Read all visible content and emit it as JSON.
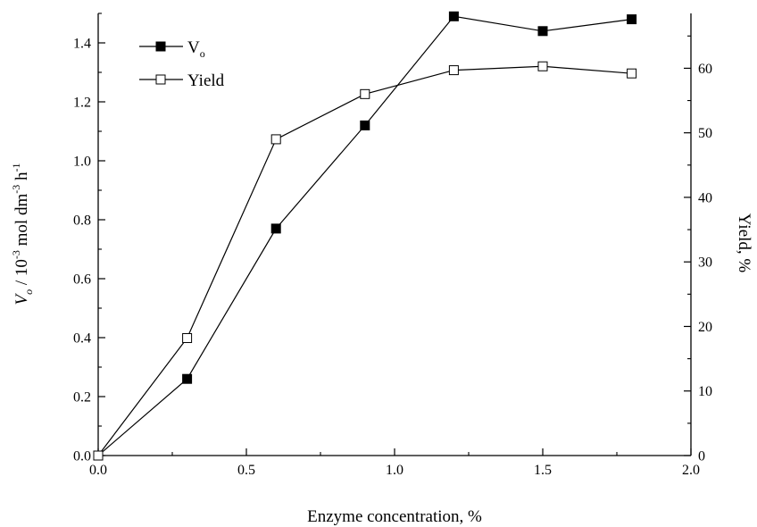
{
  "chart_data": {
    "type": "line",
    "xlabel": "Enzyme concentration, %",
    "ylabel": {
      "main": "V",
      "sub": "o",
      "rest": " / 10",
      "exp1": "-3",
      "rest2": " mol dm",
      "exp2": "-3",
      "rest3": " h",
      "exp3": "-1"
    },
    "y2label": "Yield, %",
    "xlim": [
      0.0,
      2.0
    ],
    "ylim": [
      0.0,
      1.5
    ],
    "y2lim": [
      0,
      68.5
    ],
    "xticks": [
      "0.0",
      "0.5",
      "1.0",
      "1.5",
      "2.0"
    ],
    "yticks": [
      "0.0",
      "0.2",
      "0.4",
      "0.6",
      "0.8",
      "1.0",
      "1.2",
      "1.4"
    ],
    "y2ticks": [
      "0",
      "10",
      "20",
      "30",
      "40",
      "50",
      "60"
    ],
    "legend": {
      "placement": "top-left",
      "items": [
        {
          "main": "V",
          "sub": "o",
          "marker": "filled-square"
        },
        {
          "main": "Yield",
          "sub": "",
          "marker": "open-square"
        }
      ]
    },
    "series": [
      {
        "name": "Vo",
        "axis": "left",
        "marker": "filled-square",
        "x": [
          0.0,
          0.3,
          0.6,
          0.9,
          1.2,
          1.5,
          1.8
        ],
        "y": [
          0.0,
          0.26,
          0.77,
          1.12,
          1.49,
          1.44,
          1.48
        ]
      },
      {
        "name": "Yield",
        "axis": "right",
        "marker": "open-square",
        "x": [
          0.0,
          0.3,
          0.6,
          0.9,
          1.2,
          1.5,
          1.8
        ],
        "y": [
          0.0,
          18.2,
          49.0,
          56.0,
          59.7,
          60.3,
          59.2
        ]
      }
    ]
  }
}
